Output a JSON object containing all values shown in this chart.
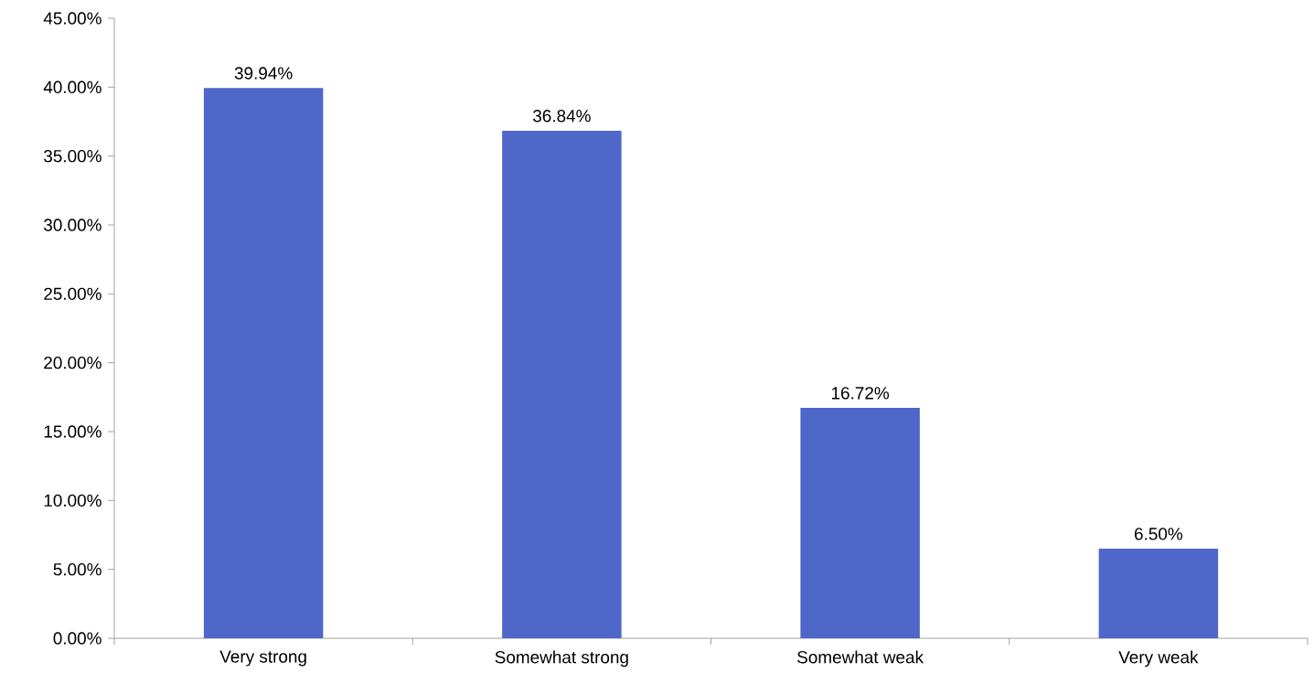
{
  "chart_data": {
    "type": "bar",
    "categories": [
      "Very strong",
      "Somewhat strong",
      "Somewhat weak",
      "Very weak"
    ],
    "values": [
      39.94,
      36.84,
      16.72,
      6.5
    ],
    "value_labels": [
      "39.94%",
      "36.84%",
      "16.72%",
      "6.50%"
    ],
    "color": "#4f67c8",
    "ylim": [
      0,
      45
    ],
    "yticks": [
      {
        "value": 0,
        "label": "0.00%"
      },
      {
        "value": 5,
        "label": "5.00%"
      },
      {
        "value": 10,
        "label": "10.00%"
      },
      {
        "value": 15,
        "label": "15.00%"
      },
      {
        "value": 20,
        "label": "20.00%"
      },
      {
        "value": 25,
        "label": "25.00%"
      },
      {
        "value": 30,
        "label": "30.00%"
      },
      {
        "value": 35,
        "label": "35.00%"
      },
      {
        "value": 40,
        "label": "40.00%"
      },
      {
        "value": 45,
        "label": "45.00%"
      }
    ],
    "grid": false
  }
}
